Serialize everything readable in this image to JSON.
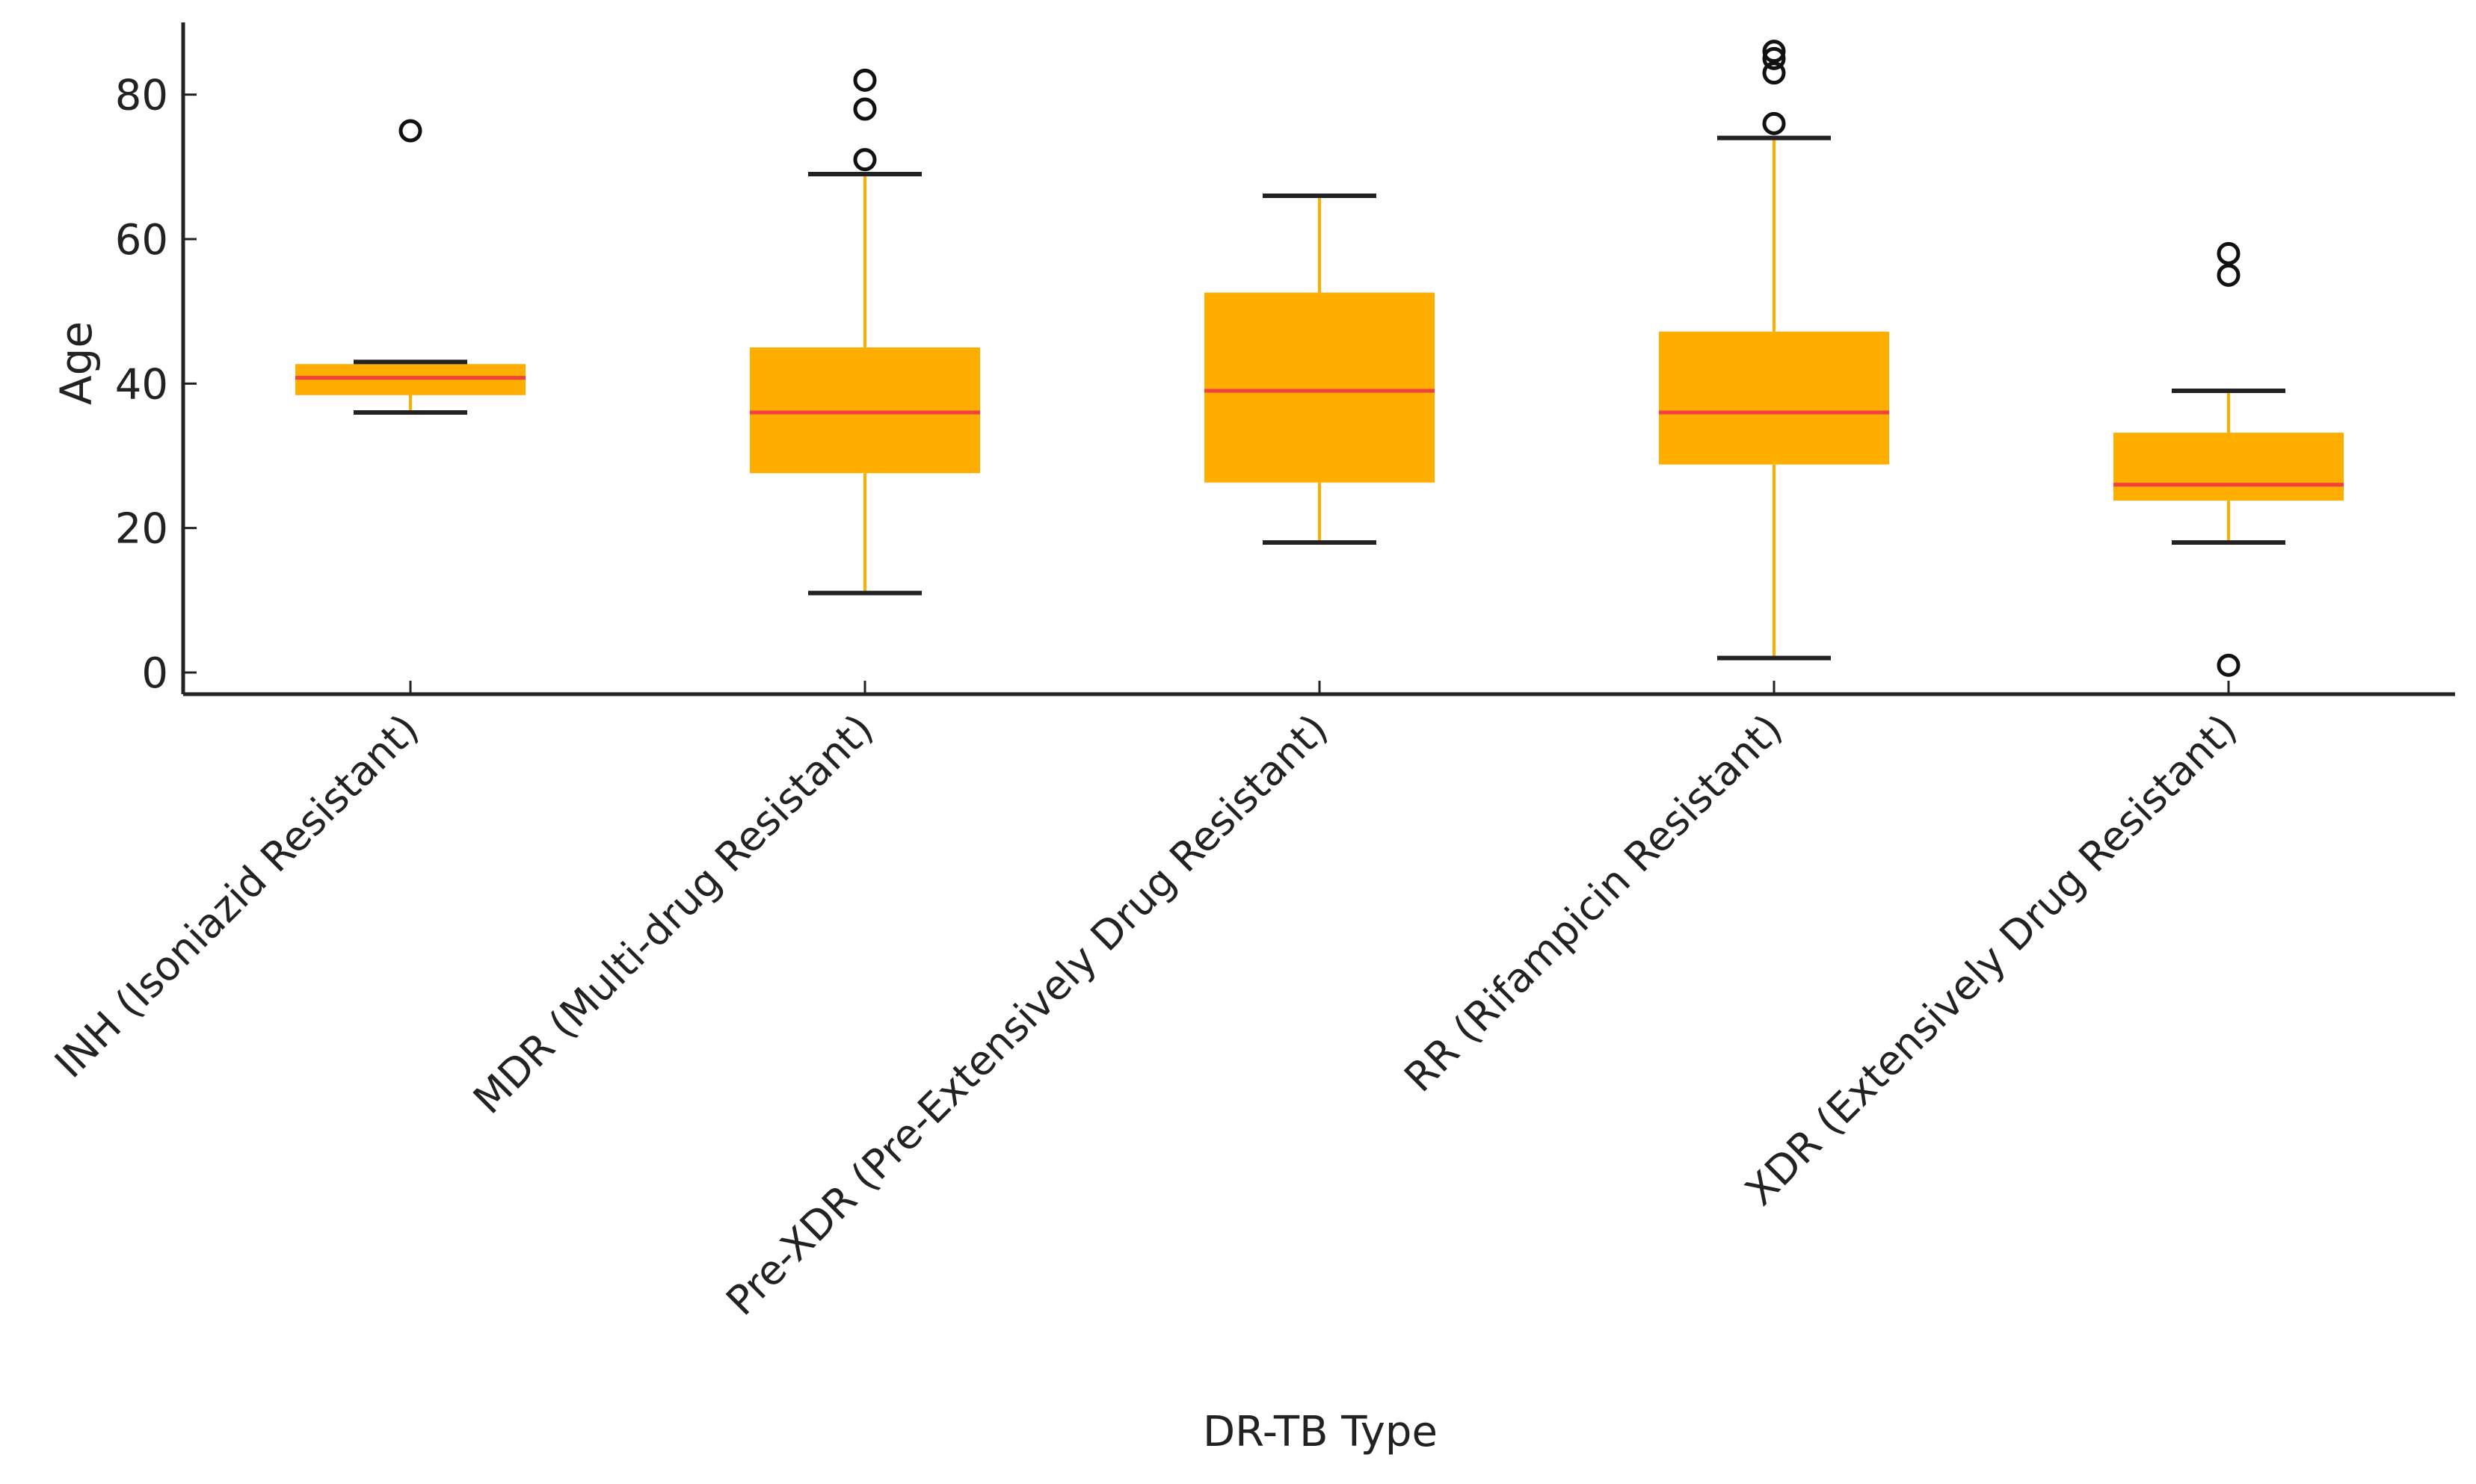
{
  "chart_data": {
    "type": "box",
    "title": "",
    "xlabel": "DR-TB Type",
    "ylabel": "Age",
    "ylim": [
      -3,
      90
    ],
    "yticks": [
      0,
      20,
      40,
      60,
      80
    ],
    "grid": false,
    "colors": {
      "box": "#FFAE00",
      "whisker": "#FFAE00",
      "median": "#F04040",
      "cap": "#222222",
      "outlier": "#111111",
      "axis": "#222222"
    },
    "categories": [
      "INH (Isoniazid Resistant)",
      "MDR (Multi-drug Resistant)",
      "Pre-XDR (Pre-Extensively Drug Resistant)",
      "RR (Rifampicin Resistant)",
      "XDR (Extensively Drug Resistant)"
    ],
    "boxes": [
      {
        "whislo": 36,
        "q1": 38.4,
        "med": 40.8,
        "q3": 42.7,
        "whishi": 43,
        "fliers": [
          75
        ]
      },
      {
        "whislo": 11,
        "q1": 27.6,
        "med": 36,
        "q3": 45,
        "whishi": 69,
        "fliers": [
          71,
          78,
          82
        ]
      },
      {
        "whislo": 18,
        "q1": 26.3,
        "med": 39,
        "q3": 52.6,
        "whishi": 66,
        "fliers": []
      },
      {
        "whislo": 2,
        "q1": 28.8,
        "med": 36,
        "q3": 47.2,
        "whishi": 74,
        "fliers": [
          76,
          83,
          85,
          86
        ]
      },
      {
        "whislo": 18,
        "q1": 23.8,
        "med": 26,
        "q3": 33.2,
        "whishi": 39,
        "fliers": [
          1,
          55,
          58
        ]
      }
    ]
  }
}
